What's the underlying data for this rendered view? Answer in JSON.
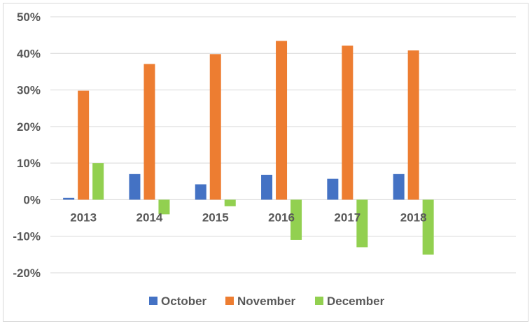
{
  "chart_data": {
    "type": "bar",
    "title": "",
    "xlabel": "",
    "ylabel": "",
    "categories": [
      "2013",
      "2014",
      "2015",
      "2016",
      "2017",
      "2018"
    ],
    "series": [
      {
        "name": "October",
        "color": "#4472C4",
        "values": [
          0.5,
          7.0,
          4.2,
          6.8,
          5.7,
          7.0
        ]
      },
      {
        "name": "November",
        "color": "#ED7D31",
        "values": [
          29.8,
          37.1,
          39.8,
          43.4,
          42.1,
          40.8
        ]
      },
      {
        "name": "December",
        "color": "#92D050",
        "values": [
          10.0,
          -4.0,
          -1.8,
          -11.0,
          -13.0,
          -15.0
        ]
      }
    ],
    "ylim": [
      -20,
      50
    ],
    "yticks": [
      "50%",
      "40%",
      "30%",
      "20%",
      "10%",
      "0%",
      "-10%",
      "-20%"
    ],
    "ytick_values": [
      50,
      40,
      30,
      20,
      10,
      0,
      -10,
      -20
    ],
    "grid": true,
    "legend": "bottom",
    "gridline_color": "#d9d9d9"
  }
}
